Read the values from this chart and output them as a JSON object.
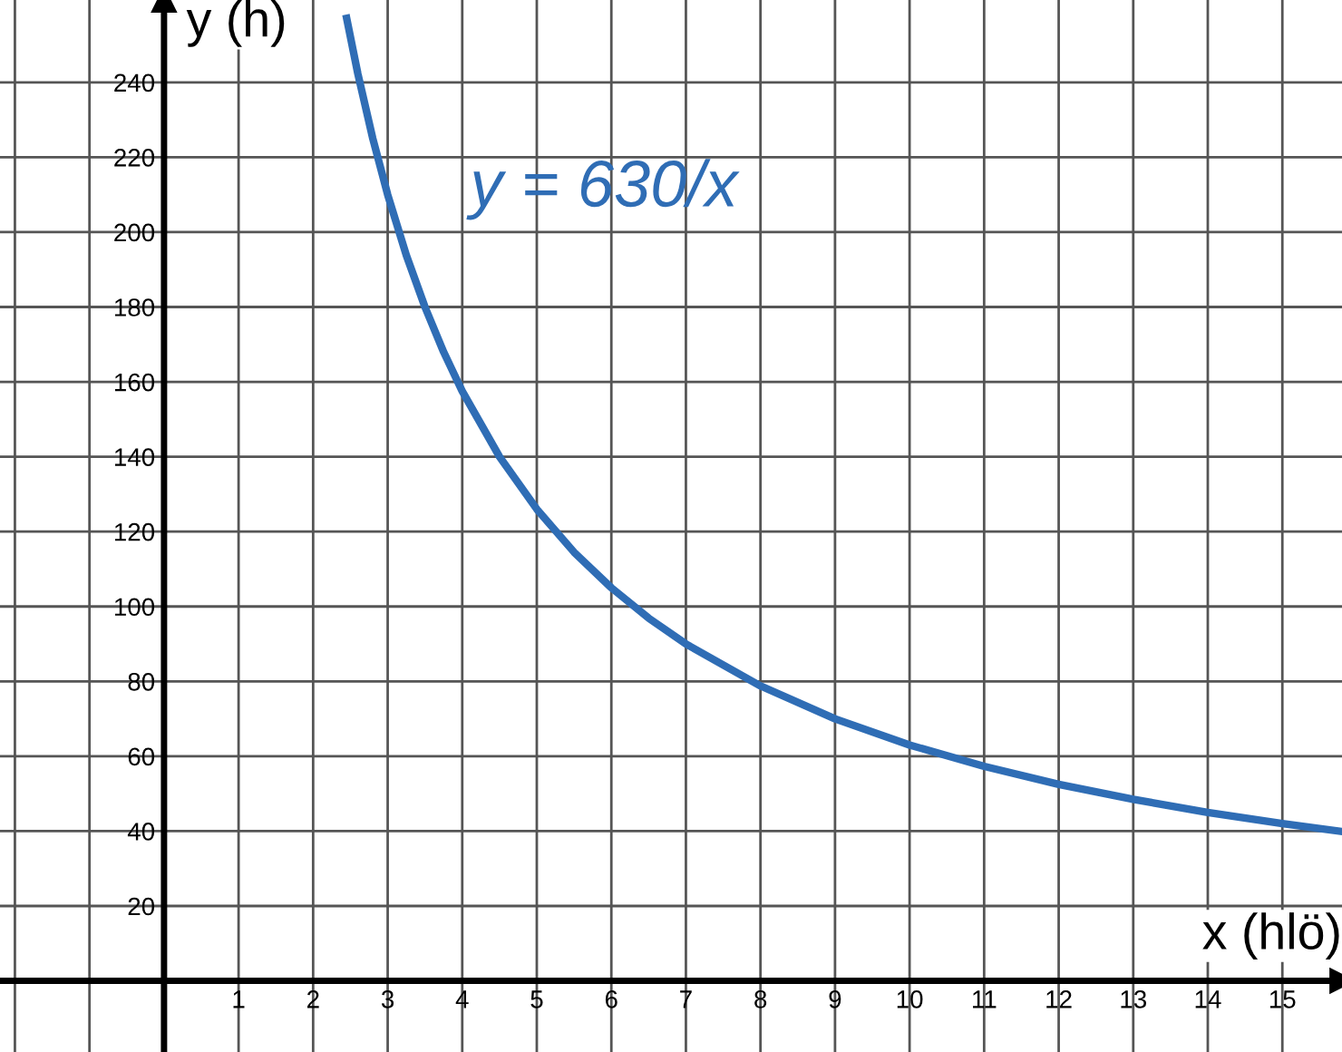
{
  "chart_data": {
    "type": "line",
    "xlabel": "x (hlö)",
    "ylabel": "y (h)",
    "annotations": [
      "y = 630/x"
    ],
    "series": [
      {
        "color": "#2f6db5",
        "x": [
          2.45,
          2.6,
          2.8,
          3,
          3.25,
          3.5,
          3.75,
          4,
          4.5,
          5,
          5.5,
          6,
          6.5,
          7,
          8,
          9,
          10,
          11,
          12,
          13,
          14,
          15,
          15.8
        ],
        "values": [
          257.1,
          242.3,
          225,
          210,
          193.8,
          180,
          168,
          157.5,
          140,
          126,
          114.5,
          105,
          96.9,
          90,
          78.8,
          70,
          63,
          57.3,
          52.5,
          48.5,
          45,
          42,
          39.9
        ]
      }
    ],
    "xlim": [
      -2.2,
      15.8
    ],
    "ylim": [
      -19,
      262
    ],
    "xticks": [
      {
        "value": -2,
        "label": null
      },
      {
        "value": -1,
        "label": null
      },
      {
        "value": 0,
        "label": null
      },
      1,
      2,
      3,
      4,
      5,
      6,
      7,
      8,
      9,
      10,
      11,
      12,
      13,
      14,
      15
    ],
    "yticks": [
      {
        "value": 0,
        "label": null
      },
      20,
      40,
      60,
      80,
      100,
      120,
      140,
      160,
      180,
      200,
      220,
      240
    ],
    "grid": true,
    "marker": "none",
    "line_style": "solid",
    "legend": false
  }
}
